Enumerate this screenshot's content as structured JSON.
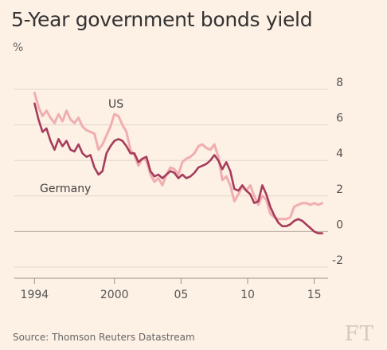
{
  "chart_data": {
    "type": "line",
    "title": "5-Year government bonds yield",
    "unit": "%",
    "ylim": [
      -2,
      8
    ],
    "y_ticks": [
      8,
      6,
      4,
      2,
      0,
      -2
    ],
    "xlim": [
      1993.5,
      2015.8
    ],
    "x_ticks": [
      {
        "value": 1994,
        "label": "1994"
      },
      {
        "value": 2000,
        "label": "2000"
      },
      {
        "value": 2005,
        "label": "05"
      },
      {
        "value": 2010,
        "label": "10"
      },
      {
        "value": 2015,
        "label": "15"
      }
    ],
    "grid": true,
    "legend": "inline labels",
    "series": [
      {
        "name": "US",
        "color": "#f0aeb0",
        "x": [
          1994.0,
          1994.3,
          1994.6,
          1994.9,
          1995.2,
          1995.5,
          1995.8,
          1996.1,
          1996.4,
          1996.7,
          1997.0,
          1997.3,
          1997.6,
          1997.9,
          1998.2,
          1998.5,
          1998.8,
          1999.1,
          1999.4,
          1999.7,
          2000.0,
          2000.3,
          2000.6,
          2000.9,
          2001.2,
          2001.5,
          2001.8,
          2002.1,
          2002.4,
          2002.7,
          2003.0,
          2003.3,
          2003.6,
          2003.9,
          2004.2,
          2004.5,
          2004.8,
          2005.1,
          2005.4,
          2005.7,
          2006.0,
          2006.3,
          2006.6,
          2006.9,
          2007.2,
          2007.5,
          2007.8,
          2008.1,
          2008.4,
          2008.7,
          2009.0,
          2009.3,
          2009.6,
          2009.9,
          2010.2,
          2010.5,
          2010.8,
          2011.1,
          2011.4,
          2011.7,
          2012.0,
          2012.3,
          2012.6,
          2012.9,
          2013.2,
          2013.5,
          2013.8,
          2014.1,
          2014.4,
          2014.7,
          2015.0,
          2015.3,
          2015.6
        ],
        "values": [
          7.8,
          7.0,
          6.5,
          6.8,
          6.4,
          6.1,
          6.6,
          6.2,
          6.8,
          6.3,
          6.1,
          6.4,
          5.9,
          5.7,
          5.6,
          5.5,
          4.6,
          4.9,
          5.4,
          5.9,
          6.6,
          6.5,
          6.0,
          5.6,
          4.6,
          4.3,
          3.7,
          4.1,
          4.0,
          3.2,
          2.8,
          3.0,
          2.6,
          3.2,
          3.6,
          3.5,
          3.2,
          3.9,
          4.1,
          4.2,
          4.4,
          4.8,
          4.9,
          4.7,
          4.6,
          4.9,
          4.2,
          2.9,
          3.1,
          2.6,
          1.7,
          2.1,
          2.5,
          2.3,
          2.6,
          2.0,
          1.5,
          2.0,
          1.8,
          1.0,
          0.8,
          0.7,
          0.7,
          0.7,
          0.8,
          1.4,
          1.5,
          1.6,
          1.6,
          1.5,
          1.6,
          1.5,
          1.6
        ]
      },
      {
        "name": "Germany",
        "color": "#a63c5c",
        "x": [
          1994.0,
          1994.3,
          1994.6,
          1994.9,
          1995.2,
          1995.5,
          1995.8,
          1996.1,
          1996.4,
          1996.7,
          1997.0,
          1997.3,
          1997.6,
          1997.9,
          1998.2,
          1998.5,
          1998.8,
          1999.1,
          1999.4,
          1999.7,
          2000.0,
          2000.3,
          2000.6,
          2000.9,
          2001.2,
          2001.5,
          2001.8,
          2002.1,
          2002.4,
          2002.7,
          2003.0,
          2003.3,
          2003.6,
          2003.9,
          2004.2,
          2004.5,
          2004.8,
          2005.1,
          2005.4,
          2005.7,
          2006.0,
          2006.3,
          2006.6,
          2006.9,
          2007.2,
          2007.5,
          2007.8,
          2008.1,
          2008.4,
          2008.7,
          2009.0,
          2009.3,
          2009.6,
          2009.9,
          2010.2,
          2010.5,
          2010.8,
          2011.1,
          2011.4,
          2011.7,
          2012.0,
          2012.3,
          2012.6,
          2012.9,
          2013.2,
          2013.5,
          2013.8,
          2014.1,
          2014.4,
          2014.7,
          2015.0,
          2015.3,
          2015.6
        ],
        "values": [
          7.2,
          6.3,
          5.6,
          5.8,
          5.1,
          4.6,
          5.2,
          4.8,
          5.1,
          4.6,
          4.5,
          4.9,
          4.4,
          4.2,
          4.3,
          3.6,
          3.2,
          3.4,
          4.4,
          4.8,
          5.1,
          5.2,
          5.1,
          4.8,
          4.4,
          4.4,
          3.9,
          4.1,
          4.2,
          3.4,
          3.1,
          3.2,
          3.0,
          3.2,
          3.4,
          3.3,
          3.0,
          3.2,
          3.0,
          3.1,
          3.3,
          3.6,
          3.7,
          3.8,
          4.0,
          4.3,
          4.0,
          3.5,
          3.9,
          3.4,
          2.4,
          2.3,
          2.6,
          2.3,
          2.1,
          1.6,
          1.7,
          2.6,
          2.1,
          1.4,
          0.9,
          0.5,
          0.3,
          0.3,
          0.4,
          0.6,
          0.7,
          0.6,
          0.4,
          0.2,
          0.0,
          -0.1,
          -0.1
        ]
      }
    ]
  },
  "source": "Source: Thomson Reuters Datastream",
  "logo": "FT"
}
